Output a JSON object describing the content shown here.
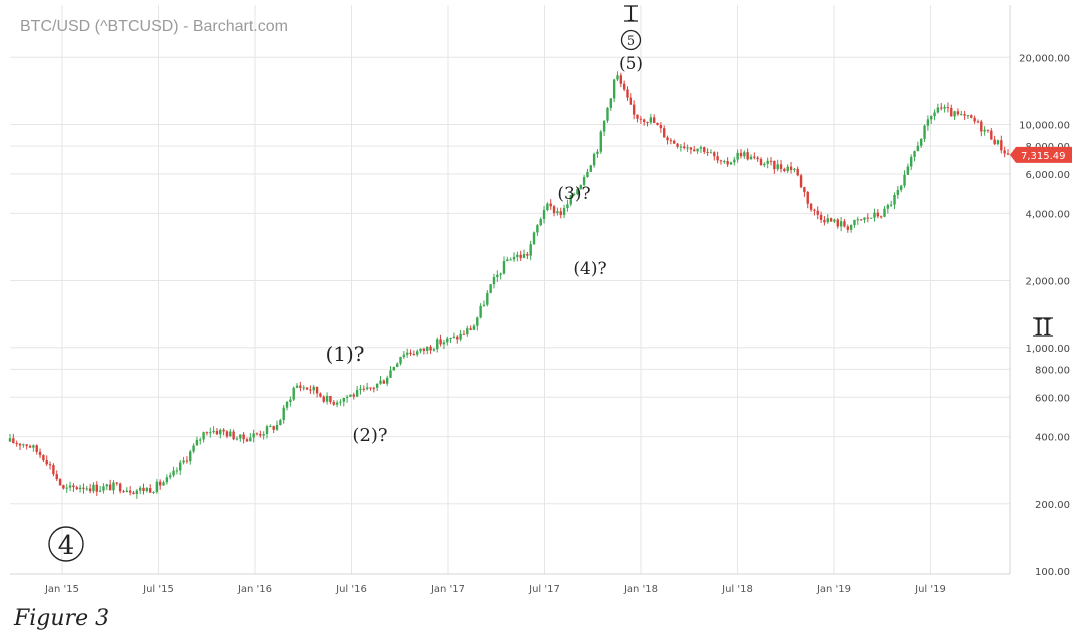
{
  "chart_data": {
    "type": "candlestick",
    "title": "BTC/USD (^BTCUSD) - Barchart.com",
    "y_scale": "log",
    "ylim": [
      100,
      30000
    ],
    "y_ticks": [
      {
        "value": 200,
        "label": "200.00"
      },
      {
        "value": 400,
        "label": "400.00"
      },
      {
        "value": 600,
        "label": "600.00"
      },
      {
        "value": 800,
        "label": "800.00"
      },
      {
        "value": 1000,
        "label": "1,000.00"
      },
      {
        "value": 2000,
        "label": "2,000.00"
      },
      {
        "value": 4000,
        "label": "4,000.00"
      },
      {
        "value": 6000,
        "label": "6,000.00"
      },
      {
        "value": 8000,
        "label": "8,000.00"
      },
      {
        "value": 10000,
        "label": "10,000.00"
      },
      {
        "value": 20000,
        "label": "20,000.00"
      }
    ],
    "bottom_label": "100.00",
    "x_ticks": [
      "Jan '15",
      "Jul '15",
      "Jan '16",
      "Jul '16",
      "Jan '17",
      "Jul '17",
      "Jan '18",
      "Jul '18",
      "Jan '19",
      "Jul '19"
    ],
    "grid": true,
    "last_price": {
      "value": 7315.49,
      "label": "7,315.49",
      "color": "#e8473c"
    },
    "colors": {
      "up": "#3aa84f",
      "down": "#d9403a"
    },
    "series": [
      {
        "name": "BTC/USD",
        "x": [
          "Oct '14",
          "Nov '14",
          "Dec '14",
          "Jan '15",
          "Feb '15",
          "Apr '15",
          "Jun '15",
          "Aug '15",
          "Sep '15",
          "Oct '15",
          "Nov '15",
          "Dec '15",
          "Jan '16",
          "Feb '16",
          "Mar '16",
          "May '16",
          "Jun '16",
          "Jul '16",
          "Aug '16",
          "Sep '16",
          "Oct '16",
          "Nov '16",
          "Dec '16",
          "Jan '17",
          "Feb '17",
          "Mar '17",
          "Apr '17",
          "May '17",
          "Jun '17",
          "Jul '17",
          "Aug '17",
          "Sep '17",
          "Oct '17",
          "Nov '17",
          "Dec '17",
          "Jan '18",
          "Feb '18",
          "Mar '18",
          "Apr '18",
          "May '18",
          "Jun '18",
          "Jul '18",
          "Aug '18",
          "Sep '18",
          "Oct '18",
          "Nov '18",
          "Dec '18",
          "Jan '19",
          "Feb '19",
          "Mar '19",
          "Apr '19",
          "May '19",
          "Jun '19",
          "Jul '19",
          "Aug '19",
          "Sep '19",
          "Oct '19"
        ],
        "values": [
          380,
          370,
          320,
          230,
          240,
          235,
          240,
          230,
          235,
          260,
          330,
          430,
          420,
          390,
          415,
          450,
          680,
          650,
          570,
          610,
          640,
          720,
          950,
          960,
          1050,
          1100,
          1250,
          1900,
          2550,
          2600,
          4300,
          4000,
          5500,
          8000,
          17000,
          11000,
          10500,
          8500,
          8000,
          7800,
          6500,
          7500,
          6800,
          6500,
          6400,
          4100,
          3700,
          3500,
          3800,
          4000,
          5200,
          8500,
          12000,
          11000,
          10500,
          9000,
          7315
        ]
      }
    ],
    "annotations": [
      {
        "text": "I"
      },
      {
        "text": "5"
      },
      {
        "text": "(5)"
      },
      {
        "text": "(3)?"
      },
      {
        "text": "(4)?"
      },
      {
        "text": "(1)?"
      },
      {
        "text": "(2)?"
      },
      {
        "text": "4"
      },
      {
        "text": "II"
      }
    ]
  },
  "caption": "Figure 3"
}
